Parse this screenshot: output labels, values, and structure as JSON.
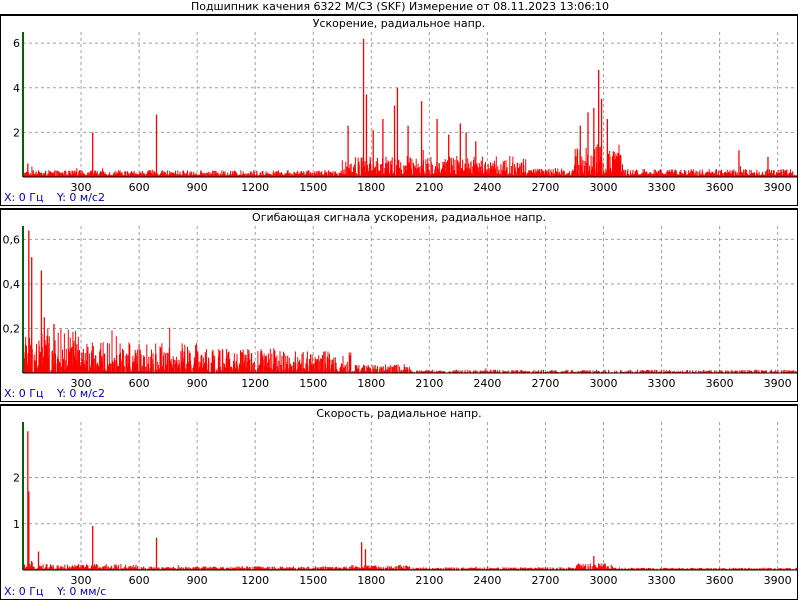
{
  "window_title": "Подшипник качения 6322 M/C3 (SKF)  Измерение от 08.11.2023 13:06:10",
  "colors": {
    "signal": "#ff0000",
    "axis": "#006400",
    "grid": "#a0a0a0",
    "readout": "#0000cc"
  },
  "chart_data": [
    {
      "type": "line",
      "title": "Ускорение, радиальное напр.",
      "xlabel": "",
      "ylabel": "",
      "xlim": [
        0,
        4000
      ],
      "ylim": [
        0,
        6.5
      ],
      "x_ticks": [
        300,
        600,
        900,
        1200,
        1500,
        1800,
        2100,
        2400,
        2700,
        3000,
        3300,
        3600,
        3900
      ],
      "y_ticks": [
        {
          "v": 2,
          "label": "2"
        },
        {
          "v": 4,
          "label": "4"
        },
        {
          "v": 6,
          "label": "6"
        }
      ],
      "grid": true,
      "cursor_x": "X: 0 Гц",
      "cursor_y": "Y: 0 м/с2",
      "noise": {
        "base": 0.12,
        "segments": [
          [
            0,
            1650,
            0.25
          ],
          [
            1650,
            2600,
            0.9
          ],
          [
            2600,
            2850,
            0.35
          ],
          [
            2850,
            3100,
            1.4
          ],
          [
            3100,
            4000,
            0.3
          ]
        ]
      },
      "peaks": [
        [
          25,
          0.6
        ],
        [
          360,
          2.0
        ],
        [
          690,
          2.8
        ],
        [
          1680,
          2.3
        ],
        [
          1760,
          6.2
        ],
        [
          1775,
          3.7
        ],
        [
          1810,
          2.1
        ],
        [
          1860,
          2.6
        ],
        [
          1920,
          3.2
        ],
        [
          1935,
          4.0
        ],
        [
          1990,
          2.3
        ],
        [
          2060,
          3.4
        ],
        [
          2140,
          2.6
        ],
        [
          2200,
          1.9
        ],
        [
          2260,
          2.4
        ],
        [
          2290,
          2.0
        ],
        [
          2340,
          1.6
        ],
        [
          2880,
          2.3
        ],
        [
          2920,
          2.9
        ],
        [
          2950,
          3.1
        ],
        [
          2975,
          4.8
        ],
        [
          2990,
          3.5
        ],
        [
          3020,
          2.6
        ],
        [
          3700,
          1.2
        ],
        [
          3850,
          0.9
        ]
      ]
    },
    {
      "type": "line",
      "title": "Огибающая сигнала ускорения, радиальное напр.",
      "xlabel": "",
      "ylabel": "",
      "xlim": [
        0,
        4000
      ],
      "ylim": [
        0,
        0.66
      ],
      "x_ticks": [
        300,
        600,
        900,
        1200,
        1500,
        1800,
        2100,
        2400,
        2700,
        3000,
        3300,
        3600,
        3900
      ],
      "y_ticks": [
        {
          "v": 0.2,
          "label": "0,2"
        },
        {
          "v": 0.4,
          "label": "0,4"
        },
        {
          "v": 0.6,
          "label": "0,6"
        }
      ],
      "grid": true,
      "cursor_x": "X: 0 Гц",
      "cursor_y": "Y: 0 м/с2",
      "noise": {
        "base": 0.0,
        "segments": [
          [
            0,
            300,
            0.2
          ],
          [
            300,
            900,
            0.14
          ],
          [
            900,
            1500,
            0.11
          ],
          [
            1500,
            1700,
            0.1
          ],
          [
            1700,
            2000,
            0.04
          ],
          [
            2000,
            4000,
            0.015
          ]
        ]
      },
      "peaks": [
        [
          30,
          0.64
        ],
        [
          45,
          0.52
        ],
        [
          95,
          0.46
        ],
        [
          110,
          0.25
        ],
        [
          160,
          0.22
        ]
      ]
    },
    {
      "type": "line",
      "title": "Скорость, радиальное напр.",
      "xlabel": "",
      "ylabel": "",
      "xlim": [
        0,
        4000
      ],
      "ylim": [
        0,
        3.2
      ],
      "x_ticks": [
        300,
        600,
        900,
        1200,
        1500,
        1800,
        2100,
        2400,
        2700,
        3000,
        3300,
        3600,
        3900
      ],
      "y_ticks": [
        {
          "v": 1,
          "label": "1"
        },
        {
          "v": 2,
          "label": "2"
        }
      ],
      "grid": true,
      "cursor_x": "X: 0 Гц",
      "cursor_y": "Y: 0 мм/с",
      "noise": {
        "base": 0.02,
        "segments": [
          [
            0,
            600,
            0.12
          ],
          [
            600,
            1700,
            0.07
          ],
          [
            1700,
            2000,
            0.1
          ],
          [
            2000,
            2850,
            0.05
          ],
          [
            2850,
            3050,
            0.14
          ],
          [
            3050,
            4000,
            0.04
          ]
        ]
      },
      "peaks": [
        [
          25,
          3.0
        ],
        [
          30,
          1.7
        ],
        [
          80,
          0.4
        ],
        [
          360,
          0.95
        ],
        [
          690,
          0.7
        ],
        [
          1750,
          0.6
        ],
        [
          1770,
          0.45
        ],
        [
          2950,
          0.3
        ]
      ]
    }
  ]
}
